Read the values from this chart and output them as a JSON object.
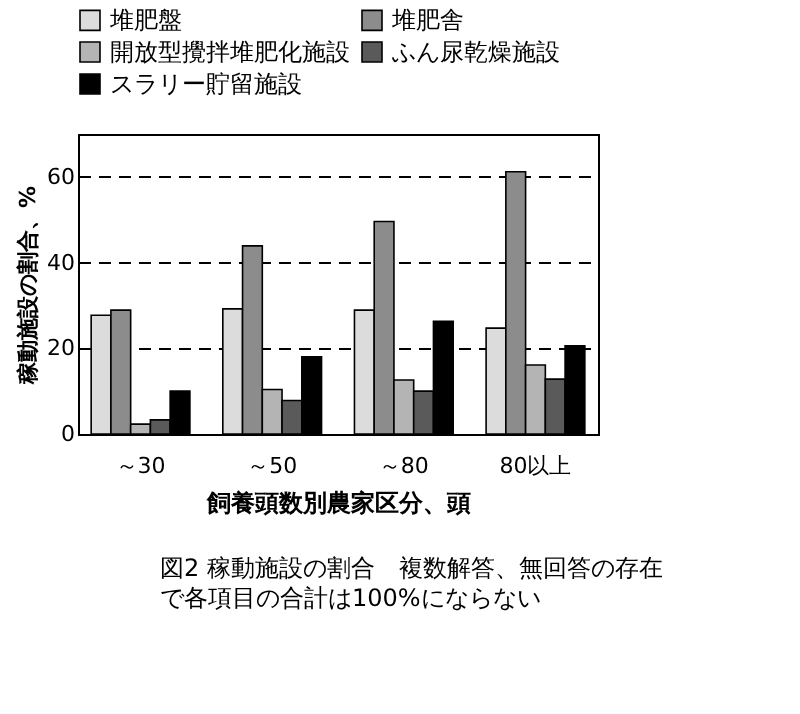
{
  "chart_data": {
    "type": "bar",
    "xlabel": "飼養頭数別農家区分、頭",
    "ylabel": "稼動施設の割合、%",
    "categories": [
      "～30",
      "～50",
      "～80",
      "80以上"
    ],
    "series": [
      {
        "name": "堆肥盤",
        "color": "#dcdcdc",
        "values": [
          27.7,
          29.2,
          28.9,
          24.7
        ]
      },
      {
        "name": "堆肥舎",
        "color": "#8c8c8c",
        "values": [
          28.9,
          43.9,
          49.6,
          61.2
        ]
      },
      {
        "name": "開放型攪拌堆肥化施設",
        "color": "#b4b4b4",
        "values": [
          2.3,
          10.4,
          12.6,
          16.1
        ]
      },
      {
        "name": "ふん尿乾燥施設",
        "color": "#5a5a5a",
        "values": [
          3.3,
          7.8,
          10,
          12.8
        ]
      },
      {
        "name": "スラリー貯留施設",
        "color": "#000000",
        "values": [
          10,
          18,
          26.3,
          20.6
        ]
      }
    ],
    "ylim": [
      0,
      70
    ],
    "yticks": [
      0,
      20,
      40,
      60
    ],
    "grid": "y",
    "legend": "top",
    "annotations": [
      "図2 稼動施設の割合　複数解答、無回答の存在で各項目の合計は100%にならない"
    ]
  }
}
